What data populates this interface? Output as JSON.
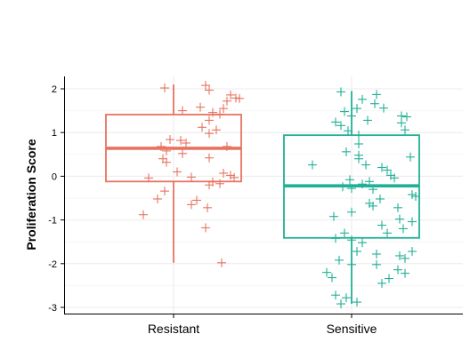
{
  "chart_data": {
    "type": "box",
    "title": "",
    "xlabel": "",
    "ylabel": "Proliferation Score",
    "ylim": [
      -3.1,
      2.2
    ],
    "y_ticks": [
      2,
      1,
      0,
      -1,
      -2,
      -3
    ],
    "grid": true,
    "legend": "none",
    "categories": [
      "Resistant",
      "Sensitive"
    ],
    "series": [
      {
        "color": "#E8735F",
        "box": {
          "lower_whisker": -1.98,
          "q1": -0.12,
          "median": 0.64,
          "q3": 1.41,
          "upper_whisker": 2.1
        },
        "points": [
          [
            -0.05,
            2.02
          ],
          [
            0.18,
            2.08
          ],
          [
            0.2,
            1.97
          ],
          [
            0.32,
            1.86
          ],
          [
            0.35,
            1.79
          ],
          [
            0.3,
            1.72
          ],
          [
            0.37,
            1.78
          ],
          [
            0.15,
            1.58
          ],
          [
            0.28,
            1.55
          ],
          [
            0.05,
            1.5
          ],
          [
            0.22,
            1.46
          ],
          [
            0.26,
            1.42
          ],
          [
            0.2,
            1.28
          ],
          [
            0.16,
            1.12
          ],
          [
            0.24,
            1.06
          ],
          [
            0.2,
            0.98
          ],
          [
            -0.02,
            0.84
          ],
          [
            0.04,
            0.82
          ],
          [
            0.07,
            0.76
          ],
          [
            -0.07,
            0.68
          ],
          [
            0.3,
            0.68
          ],
          [
            -0.04,
            0.58
          ],
          [
            0.05,
            0.52
          ],
          [
            -0.06,
            0.4
          ],
          [
            -0.04,
            0.32
          ],
          [
            0.2,
            0.42
          ],
          [
            0.02,
            0.1
          ],
          [
            0.28,
            0.07
          ],
          [
            -0.14,
            -0.04
          ],
          [
            0.1,
            -0.02
          ],
          [
            0.32,
            0.02
          ],
          [
            0.34,
            -0.03
          ],
          [
            0.22,
            -0.13
          ],
          [
            0.26,
            -0.17
          ],
          [
            0.2,
            -0.2
          ],
          [
            -0.05,
            -0.34
          ],
          [
            -0.09,
            -0.52
          ],
          [
            0.13,
            -0.55
          ],
          [
            0.1,
            -0.65
          ],
          [
            0.19,
            -0.72
          ],
          [
            -0.17,
            -0.88
          ],
          [
            0.18,
            -1.18
          ],
          [
            0.27,
            -1.98
          ]
        ]
      },
      {
        "color": "#20B096",
        "box": {
          "lower_whisker": -2.92,
          "q1": -1.41,
          "median": -0.22,
          "q3": 0.94,
          "upper_whisker": 1.95
        },
        "points": [
          [
            -0.06,
            1.93
          ],
          [
            0.14,
            1.87
          ],
          [
            0.06,
            1.76
          ],
          [
            0.13,
            1.66
          ],
          [
            0.03,
            1.55
          ],
          [
            0.18,
            1.56
          ],
          [
            -0.04,
            1.48
          ],
          [
            0.0,
            1.38
          ],
          [
            -0.09,
            1.24
          ],
          [
            0.09,
            1.28
          ],
          [
            0.28,
            1.38
          ],
          [
            0.31,
            1.36
          ],
          [
            0.28,
            1.22
          ],
          [
            0.3,
            1.06
          ],
          [
            -0.06,
            1.16
          ],
          [
            -0.02,
            1.04
          ],
          [
            0.04,
            0.94
          ],
          [
            0.04,
            0.74
          ],
          [
            -0.03,
            0.56
          ],
          [
            0.04,
            0.48
          ],
          [
            0.04,
            0.4
          ],
          [
            0.33,
            0.44
          ],
          [
            0.08,
            0.26
          ],
          [
            -0.22,
            0.26
          ],
          [
            0.17,
            0.2
          ],
          [
            0.2,
            0.14
          ],
          [
            0.22,
            0.02
          ],
          [
            0.24,
            -0.04
          ],
          [
            -0.01,
            -0.08
          ],
          [
            0.1,
            -0.12
          ],
          [
            0.06,
            -0.18
          ],
          [
            0.0,
            -0.28
          ],
          [
            0.12,
            -0.3
          ],
          [
            -0.05,
            -0.24
          ],
          [
            0.34,
            -0.42
          ],
          [
            0.36,
            -0.46
          ],
          [
            0.16,
            -0.52
          ],
          [
            0.1,
            -0.62
          ],
          [
            0.12,
            -0.68
          ],
          [
            0.26,
            -0.72
          ],
          [
            0.0,
            -0.82
          ],
          [
            -0.1,
            -0.92
          ],
          [
            0.27,
            -0.98
          ],
          [
            0.34,
            -1.04
          ],
          [
            0.17,
            -1.12
          ],
          [
            0.29,
            -1.2
          ],
          [
            0.2,
            -1.3
          ],
          [
            -0.04,
            -1.3
          ],
          [
            -0.09,
            -1.42
          ],
          [
            0.0,
            -1.46
          ],
          [
            0.06,
            -1.52
          ],
          [
            0.03,
            -1.72
          ],
          [
            0.34,
            -1.72
          ],
          [
            0.14,
            -1.78
          ],
          [
            0.27,
            -1.82
          ],
          [
            0.3,
            -1.88
          ],
          [
            -0.07,
            -1.92
          ],
          [
            0.0,
            -2.02
          ],
          [
            0.14,
            -2.02
          ],
          [
            0.26,
            -2.14
          ],
          [
            -0.14,
            -2.2
          ],
          [
            0.3,
            -2.22
          ],
          [
            -0.11,
            -2.32
          ],
          [
            0.21,
            -2.34
          ],
          [
            0.17,
            -2.45
          ],
          [
            -0.09,
            -2.72
          ],
          [
            -0.03,
            -2.78
          ],
          [
            0.03,
            -2.88
          ],
          [
            -0.06,
            -2.92
          ]
        ]
      }
    ]
  }
}
